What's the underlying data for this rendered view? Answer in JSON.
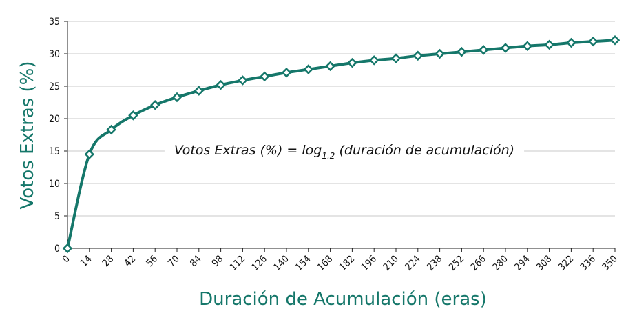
{
  "chart_data": {
    "type": "line",
    "xlabel": "Duración de Acumulación (eras)",
    "ylabel": "Votos Extras (%)",
    "annotation": {
      "prefix": "Votos Extras (%) = log",
      "subscript": "1.2",
      "suffix": " (duración de acumulación)"
    },
    "x_ticks": [
      0,
      14,
      28,
      42,
      56,
      70,
      84,
      98,
      112,
      126,
      140,
      154,
      168,
      182,
      196,
      210,
      224,
      238,
      252,
      266,
      280,
      294,
      308,
      322,
      336,
      350
    ],
    "y_ticks": [
      0,
      5,
      10,
      15,
      20,
      25,
      30,
      35
    ],
    "xlim": [
      0,
      350
    ],
    "ylim": [
      0,
      35
    ],
    "grid": "horizontal",
    "line_color": "#15776a",
    "series": [
      {
        "x": [
          0,
          14,
          28,
          42,
          56,
          70,
          84,
          98,
          112,
          126,
          140,
          154,
          168,
          182,
          196,
          210,
          224,
          238,
          252,
          266,
          280,
          294,
          308,
          322,
          336,
          350
        ],
        "y": [
          0,
          14.5,
          18.3,
          20.5,
          22.1,
          23.3,
          24.3,
          25.2,
          25.9,
          26.5,
          27.1,
          27.6,
          28.1,
          28.6,
          29.0,
          29.3,
          29.7,
          30.0,
          30.3,
          30.6,
          30.9,
          31.2,
          31.4,
          31.7,
          31.9,
          32.1
        ]
      }
    ]
  }
}
